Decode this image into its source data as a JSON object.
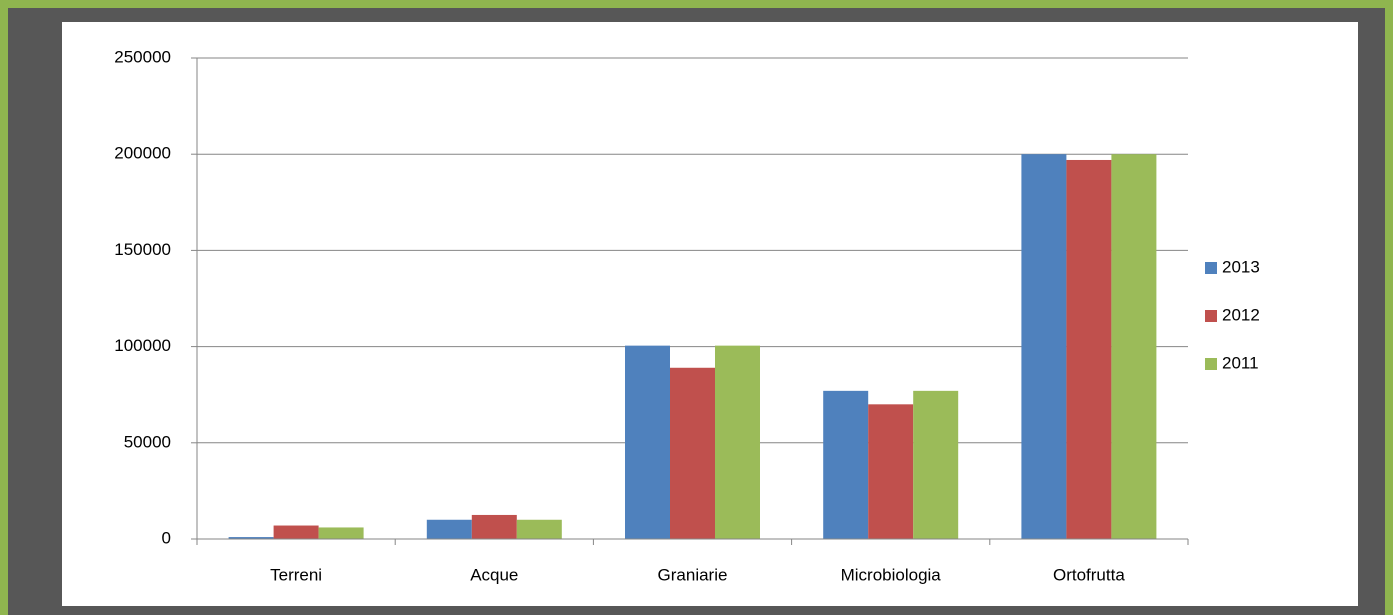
{
  "chart_data": {
    "type": "bar",
    "categories": [
      "Terreni",
      "Acque",
      "Graniarie",
      "Microbiologia",
      "Ortofrutta"
    ],
    "series": [
      {
        "name": "2013",
        "color": "#4f81bd",
        "values": [
          1000,
          10000,
          100500,
          77000,
          200000
        ]
      },
      {
        "name": "2012",
        "color": "#c0504d",
        "values": [
          7000,
          12500,
          89000,
          70000,
          197000
        ]
      },
      {
        "name": "2011",
        "color": "#9bbb59",
        "values": [
          6000,
          10000,
          100500,
          77000,
          200000
        ]
      }
    ],
    "ylim": [
      0,
      250000
    ],
    "yticks": [
      0,
      50000,
      100000,
      150000,
      200000,
      250000
    ],
    "grid": true,
    "legend": "right"
  }
}
